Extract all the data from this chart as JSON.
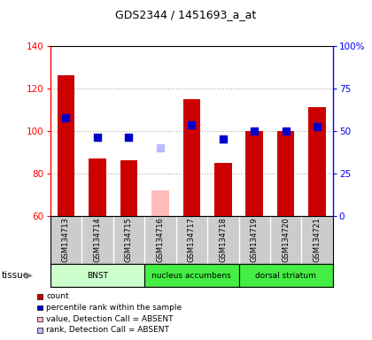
{
  "title": "GDS2344 / 1451693_a_at",
  "samples": [
    "GSM134713",
    "GSM134714",
    "GSM134715",
    "GSM134716",
    "GSM134717",
    "GSM134718",
    "GSM134719",
    "GSM134720",
    "GSM134721"
  ],
  "count_values": [
    126,
    87,
    86,
    null,
    115,
    85,
    100,
    100,
    111
  ],
  "count_absent": [
    null,
    null,
    null,
    72,
    null,
    null,
    null,
    null,
    null
  ],
  "rank_values_left": [
    106,
    97,
    97,
    null,
    103,
    96,
    100,
    100,
    102
  ],
  "rank_absent_left": [
    null,
    null,
    null,
    92,
    null,
    null,
    null,
    null,
    null
  ],
  "ylim_left": [
    60,
    140
  ],
  "ylim_right": [
    0,
    100
  ],
  "yticks_left": [
    60,
    80,
    100,
    120,
    140
  ],
  "yticks_right": [
    0,
    25,
    50,
    75,
    100
  ],
  "ytick_labels_right": [
    "0",
    "25",
    "50",
    "75",
    "100%"
  ],
  "groups": [
    {
      "label": "BNST",
      "start": 0,
      "end": 3,
      "color": "#ccffcc"
    },
    {
      "label": "nucleus accumbens",
      "start": 3,
      "end": 6,
      "color": "#44ee44"
    },
    {
      "label": "dorsal striatum",
      "start": 6,
      "end": 9,
      "color": "#44ee44"
    }
  ],
  "bar_color_present": "#cc0000",
  "bar_color_absent": "#ffbbbb",
  "rank_color_present": "#0000cc",
  "rank_color_absent": "#bbbbff",
  "bar_width": 0.55,
  "rank_marker_size": 35,
  "grid_color": "#aaaaaa",
  "sample_area_color": "#cccccc",
  "legend_items": [
    {
      "color": "#cc0000",
      "label": "count"
    },
    {
      "color": "#0000cc",
      "label": "percentile rank within the sample"
    },
    {
      "color": "#ffbbbb",
      "label": "value, Detection Call = ABSENT"
    },
    {
      "color": "#bbbbff",
      "label": "rank, Detection Call = ABSENT"
    }
  ]
}
